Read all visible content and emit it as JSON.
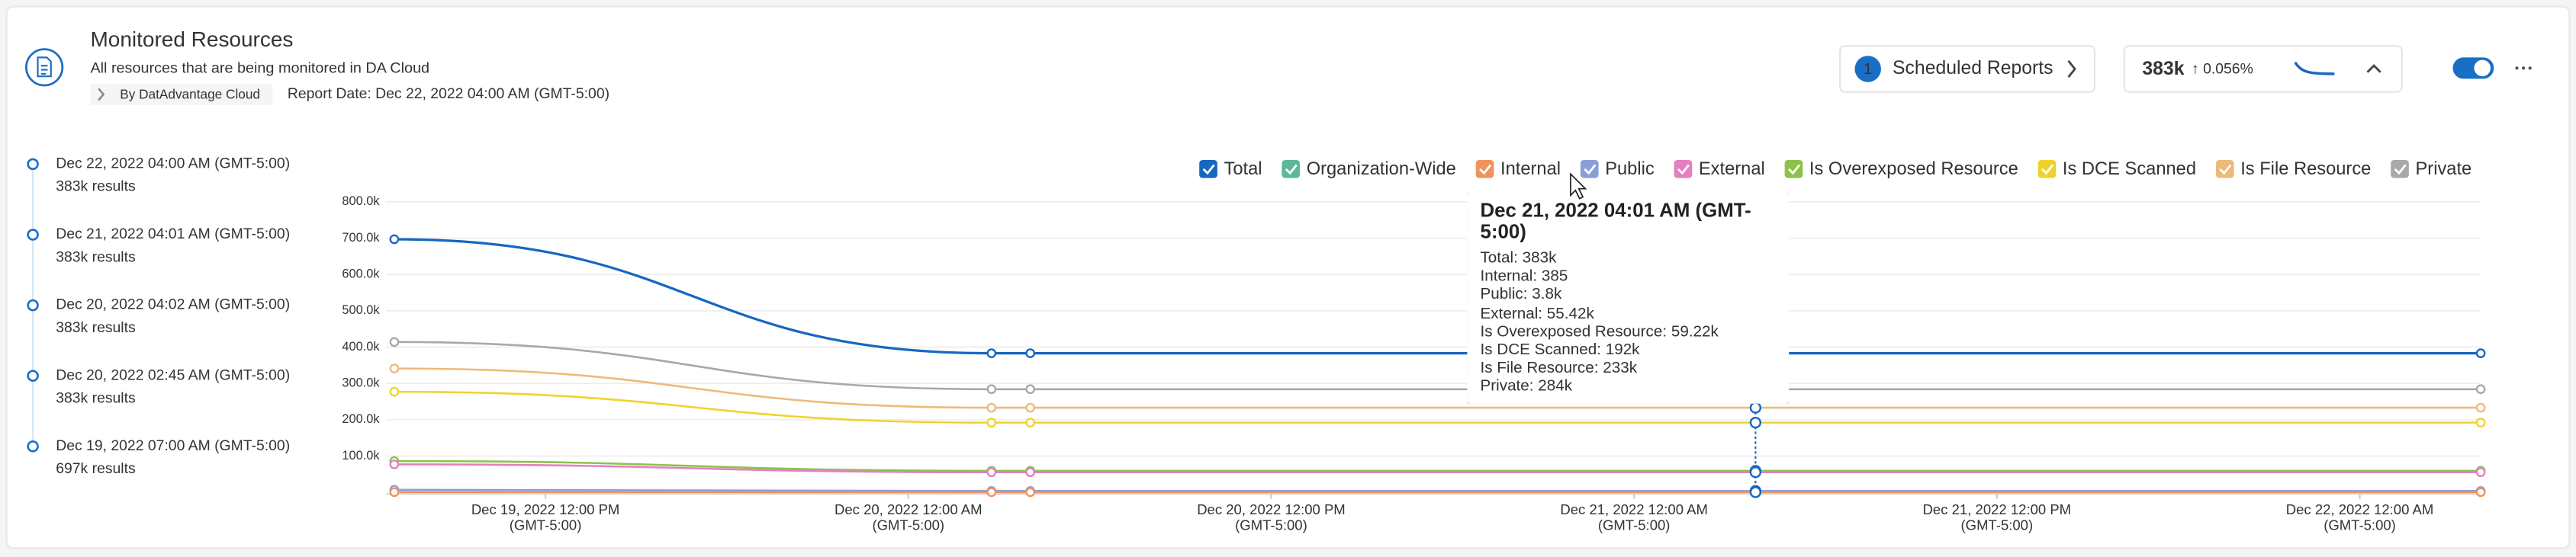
{
  "header": {
    "title": "Monitored Resources",
    "subtitle": "All resources that are being monitored in DA Cloud",
    "source": "By DatAdvantage Cloud",
    "report_date": "Report Date: Dec 22, 2022 04:00 AM (GMT-5:00)"
  },
  "scheduled_reports": {
    "count": "1",
    "label": "Scheduled Reports"
  },
  "stat": {
    "value": "383k",
    "change": "↑ 0.056%"
  },
  "timeline": [
    {
      "date": "Dec 22, 2022 04:00 AM (GMT-5:00)",
      "results": "383k results"
    },
    {
      "date": "Dec 21, 2022 04:01 AM (GMT-5:00)",
      "results": "383k results"
    },
    {
      "date": "Dec 20, 2022 04:02 AM (GMT-5:00)",
      "results": "383k results"
    },
    {
      "date": "Dec 20, 2022 02:45 AM (GMT-5:00)",
      "results": "383k results"
    },
    {
      "date": "Dec 19, 2022 07:00 AM (GMT-5:00)",
      "results": "697k results"
    }
  ],
  "chart_data": {
    "type": "line",
    "x": [
      "2022-12-19T07:00",
      "2022-12-20T02:45",
      "2022-12-20T04:02",
      "2022-12-21T04:01",
      "2022-12-22T04:00"
    ],
    "xlim": [
      "2022-12-19T07:00",
      "2022-12-22T04:00"
    ],
    "xticks": [
      {
        "value": "2022-12-19T12:00",
        "label": "Dec 19, 2022 12:00 PM (GMT-5:00)"
      },
      {
        "value": "2022-12-20T00:00",
        "label": "Dec 20, 2022 12:00 AM (GMT-5:00)"
      },
      {
        "value": "2022-12-20T12:00",
        "label": "Dec 20, 2022 12:00 PM (GMT-5:00)"
      },
      {
        "value": "2022-12-21T00:00",
        "label": "Dec 21, 2022 12:00 AM (GMT-5:00)"
      },
      {
        "value": "2022-12-21T12:00",
        "label": "Dec 21, 2022 12:00 PM (GMT-5:00)"
      },
      {
        "value": "2022-12-22T00:00",
        "label": "Dec 22, 2022 12:00 AM (GMT-5:00)"
      }
    ],
    "ylim": [
      0,
      800000
    ],
    "yticks": [
      {
        "value": 100000,
        "label": "100.0k"
      },
      {
        "value": 200000,
        "label": "200.0k"
      },
      {
        "value": 300000,
        "label": "300.0k"
      },
      {
        "value": 400000,
        "label": "400.0k"
      },
      {
        "value": 500000,
        "label": "500.0k"
      },
      {
        "value": 600000,
        "label": "600.0k"
      },
      {
        "value": 700000,
        "label": "700.0k"
      },
      {
        "value": 800000,
        "label": "800.0k"
      }
    ],
    "grid": true,
    "series": [
      {
        "name": "Total",
        "color": "#1667c0",
        "values": [
          697000,
          383000,
          383000,
          383000,
          383000
        ]
      },
      {
        "name": "Organization-Wide",
        "color": "#5bb89a",
        "values": [
          null,
          null,
          null,
          null,
          null
        ]
      },
      {
        "name": "Internal",
        "color": "#f0935a",
        "values": [
          600,
          385,
          385,
          385,
          385
        ]
      },
      {
        "name": "Public",
        "color": "#8c9ed8",
        "values": [
          7000,
          3800,
          3800,
          3800,
          3800
        ]
      },
      {
        "name": "External",
        "color": "#e57fc0",
        "values": [
          77000,
          55420,
          55420,
          55420,
          55420
        ]
      },
      {
        "name": "Is Overexposed Resource",
        "color": "#8bc34a",
        "values": [
          86000,
          59220,
          59220,
          59220,
          59220
        ]
      },
      {
        "name": "Is DCE Scanned",
        "color": "#f0d32a",
        "values": [
          277000,
          192000,
          192000,
          192000,
          192000
        ]
      },
      {
        "name": "Is File Resource",
        "color": "#ecbb78",
        "values": [
          341000,
          233000,
          233000,
          233000,
          233000
        ]
      },
      {
        "name": "Private",
        "color": "#a8a8a8",
        "values": [
          414000,
          284000,
          284000,
          284000,
          284000
        ]
      }
    ],
    "tooltip": {
      "index": 3,
      "title": "Dec 21, 2022 04:01 AM (GMT-5:00)",
      "lines": [
        "Total:  383k",
        "Internal:  385",
        "Public:  3.8k",
        "External:  55.42k",
        "Is Overexposed Resource:  59.22k",
        "Is DCE Scanned:  192k",
        "Is File Resource:  233k",
        "Private:  284k"
      ]
    }
  }
}
